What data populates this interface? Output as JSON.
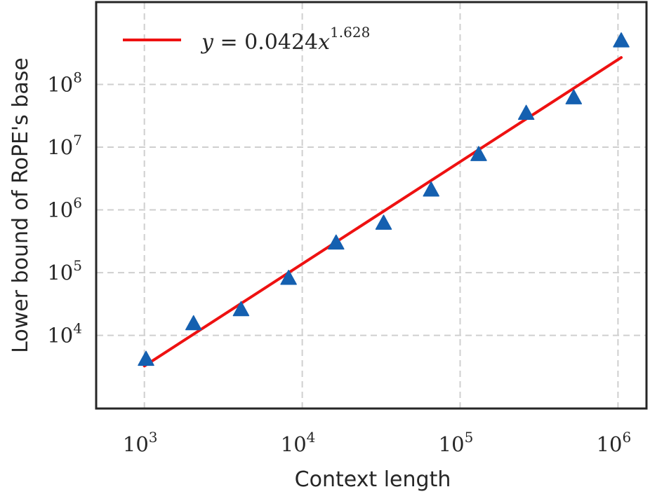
{
  "chart_data": {
    "type": "scatter",
    "xlabel": "Context length",
    "ylabel": "Lower bound of RoPE's base",
    "xscale": "log",
    "yscale": "log",
    "xlim": [
      500,
      1500000
    ],
    "ylim": [
      700,
      2000000000
    ],
    "grid": true,
    "legend_position": "top-left",
    "x_ticks": [
      {
        "base": "10",
        "exp": "3",
        "value": 1000
      },
      {
        "base": "10",
        "exp": "4",
        "value": 10000
      },
      {
        "base": "10",
        "exp": "5",
        "value": 100000
      },
      {
        "base": "10",
        "exp": "6",
        "value": 1000000
      }
    ],
    "y_ticks": [
      {
        "base": "10",
        "exp": "4",
        "value": 10000
      },
      {
        "base": "10",
        "exp": "5",
        "value": 100000
      },
      {
        "base": "10",
        "exp": "6",
        "value": 1000000
      },
      {
        "base": "10",
        "exp": "7",
        "value": 10000000
      },
      {
        "base": "10",
        "exp": "8",
        "value": 100000000
      }
    ],
    "series": [
      {
        "marker": "triangle",
        "color": "#1560b0",
        "x": [
          1024,
          2048,
          4096,
          8192,
          16384,
          32768,
          65536,
          131072,
          262144,
          524288,
          1048576
        ],
        "y": [
          4200,
          15500,
          26000,
          82000,
          300000,
          620000,
          2100000,
          7700000,
          35000000,
          62000000,
          500000000
        ]
      }
    ],
    "fit": {
      "color": "#ee1111",
      "coef": 0.0424,
      "exponent": 1.628,
      "x_range": [
        1000,
        1048576
      ],
      "legend_lhs": "y",
      "legend_eq": " = 0.0424",
      "legend_var": "x",
      "legend_sup": "1.628"
    }
  }
}
